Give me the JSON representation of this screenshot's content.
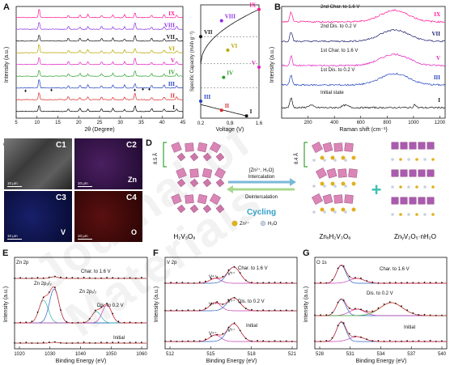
{
  "panels": {
    "A": {
      "label": "A",
      "xlabel": "2θ (Degree)",
      "ylabel": "Intensity (a.u.)",
      "xticks": [
        "5",
        "10",
        "15",
        "20",
        "25",
        "30",
        "35",
        "40",
        "45"
      ],
      "traces": [
        {
          "name": "I",
          "color": "#000000"
        },
        {
          "name": "II",
          "color": "#d62728"
        },
        {
          "name": "III",
          "color": "#1f3fbf"
        },
        {
          "name": "IV",
          "color": "#2ca02c"
        },
        {
          "name": "V",
          "color": "#e020c0"
        },
        {
          "name": "VI",
          "color": "#b8a400"
        },
        {
          "name": "VII",
          "color": "#111111"
        },
        {
          "name": "VIII",
          "color": "#8a2be2"
        },
        {
          "name": "IX",
          "color": "#ff1493"
        }
      ]
    },
    "voltage": {
      "ylabel": "Specific Capacity (mAh g⁻¹)",
      "xlabel": "Voltage (V)",
      "xticks": [
        "0.2",
        "0.9",
        "1.6"
      ],
      "points": [
        "I",
        "II",
        "III",
        "IV",
        "V",
        "VI",
        "VII",
        "VIII",
        "IX"
      ]
    },
    "B": {
      "label": "B",
      "xlabel": "Raman shift (cm⁻¹)",
      "ylabel": "Intensity (a.u.)",
      "xticks": [
        "200",
        "400",
        "600",
        "800",
        "1000",
        "1200"
      ],
      "traces": [
        {
          "name": "I",
          "text": "Initial state",
          "color": "#111111"
        },
        {
          "name": "III",
          "text": "1st Dis. to 0.2 V",
          "color": "#1f3fbf"
        },
        {
          "name": "V",
          "text": "1st Char. to 1.6 V",
          "color": "#e020c0"
        },
        {
          "name": "VII",
          "text": "2nd Dis. to 0.2 V",
          "color": "#1a1a6e"
        },
        {
          "name": "IX",
          "text": "2nd Char. to 1.6 V",
          "color": "#ff1493"
        }
      ]
    },
    "C": {
      "label": "C",
      "tiles": [
        {
          "id": "C1",
          "element": "",
          "scale": "10 μm",
          "bg": "#4a4a4a"
        },
        {
          "id": "C2",
          "element": "Zn",
          "scale": "10 μm",
          "bg": "#2a0f3a"
        },
        {
          "id": "C3",
          "element": "V",
          "scale": "10 μm",
          "bg": "#0a1240"
        },
        {
          "id": "C4",
          "element": "O",
          "scale": "10 μm",
          "bg": "#3a0808"
        }
      ]
    },
    "D": {
      "label": "D",
      "left_spacing": "8.5 Å",
      "right_spacing": "8.4 Å",
      "arrow_top": "[Zn²⁺, H₂O]",
      "arrow_top2": "Intercalation",
      "arrow_bottom": "Deintercalation",
      "cycling": "Cycling",
      "legend_zn": "Zn²⁺",
      "legend_h2o": "H₂O",
      "name_left": "H₂V₃O₈",
      "name_mid": "ZnₓH₂V₃O₈",
      "name_right": "ZnᵧV₂O₅·nH₂O",
      "plus": "+"
    },
    "E": {
      "label": "E",
      "title": "Zn 2p",
      "xlabel": "Binding Energy (eV)",
      "ylabel": "Intensity (a.u.)",
      "xticks": [
        "1020",
        "1030",
        "1040",
        "1050",
        "1060"
      ],
      "peak1": "Zn 2p₃/₂",
      "peak2": "Zn 2p₁/₂",
      "traces": [
        "Char. to 1.6 V",
        "Dis. to 0.2 V",
        "Initial"
      ]
    },
    "F": {
      "label": "F",
      "title": "V 2p",
      "xlabel": "Binding Energy (eV)",
      "ylabel": "Intensity (a.u.)",
      "xticks": [
        "512",
        "515",
        "518",
        "521"
      ],
      "v5": "V⁵⁺",
      "v4": "V⁴⁺",
      "traces": [
        "Char. to 1.6 V",
        "Dis. to 0.2 V",
        "Initial"
      ]
    },
    "G": {
      "label": "G",
      "title": "O 1s",
      "xlabel": "Binding Energy (eV)",
      "ylabel": "Intensity (a.u.)",
      "xticks": [
        "528",
        "531",
        "534",
        "537",
        "540"
      ],
      "traces": [
        "Char. to 1.6 V",
        "Dis. to 0.2 V",
        "Initial"
      ]
    }
  },
  "colors": {
    "teal": "#2bb5a8",
    "blue": "#2a60c8",
    "green": "#33a02c",
    "magenta": "#c040b0",
    "axis": "#111111"
  }
}
